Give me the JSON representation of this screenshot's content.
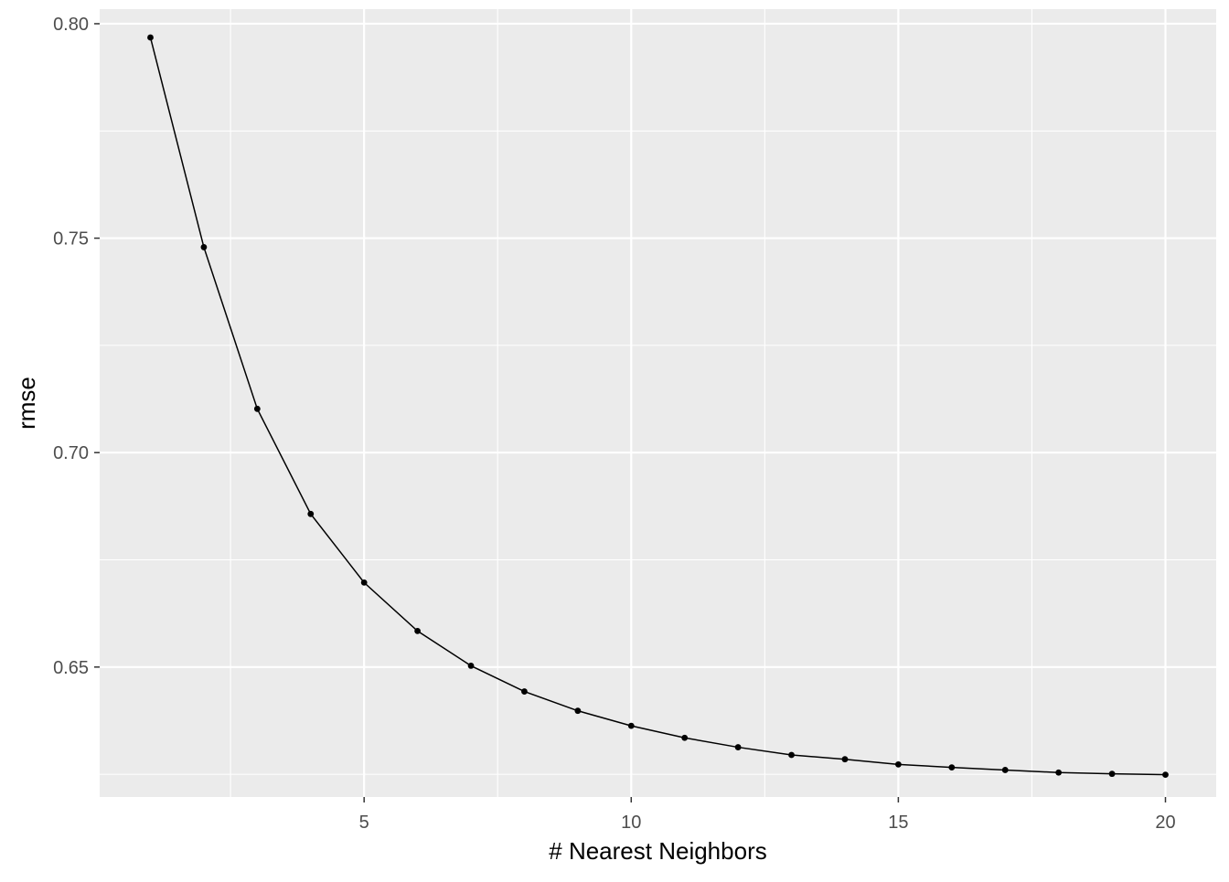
{
  "chart_data": {
    "type": "line",
    "title": "",
    "xlabel": "# Nearest Neighbors",
    "ylabel": "rmse",
    "xlim": [
      0.05,
      20.95
    ],
    "ylim": [
      0.6197,
      0.8034
    ],
    "x_ticks": [
      5,
      10,
      15,
      20
    ],
    "x_tick_labels": [
      "5",
      "10",
      "15",
      "20"
    ],
    "x_minor_ticks": [
      2.5,
      7.5,
      12.5,
      17.5
    ],
    "y_ticks": [
      0.65,
      0.7,
      0.75,
      0.8
    ],
    "y_tick_labels": [
      "0.65",
      "0.70",
      "0.75",
      "0.80"
    ],
    "y_minor_ticks": [
      0.625,
      0.675,
      0.725,
      0.775
    ],
    "grid": true,
    "legend": "none",
    "colors": {
      "panel_background": "#EBEBEB",
      "grid_line": "#FFFFFF",
      "series": "#000000",
      "tick_label": "#4D4D4D",
      "axis_title": "#000000"
    },
    "series": [
      {
        "x": [
          1,
          2,
          3,
          4,
          5,
          6,
          7,
          8,
          9,
          10,
          11,
          12,
          13,
          14,
          15,
          16,
          17,
          18,
          19,
          20
        ],
        "values": [
          0.7968,
          0.7479,
          0.7102,
          0.6857,
          0.6697,
          0.6584,
          0.6503,
          0.6443,
          0.6398,
          0.6363,
          0.6335,
          0.6313,
          0.6295,
          0.6285,
          0.6273,
          0.6266,
          0.626,
          0.6254,
          0.6251,
          0.6249
        ]
      }
    ]
  }
}
